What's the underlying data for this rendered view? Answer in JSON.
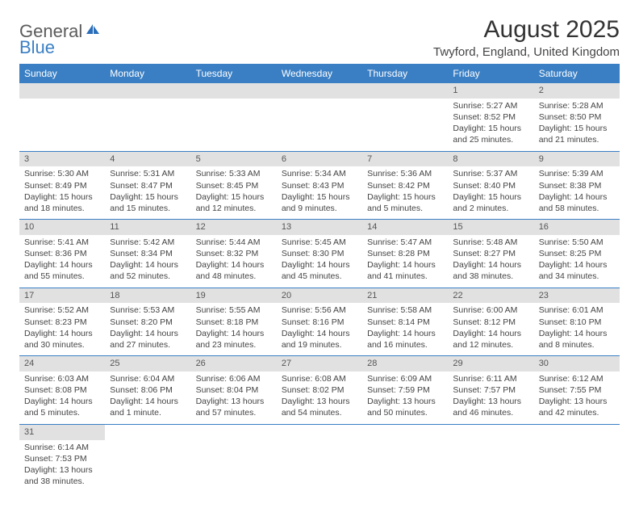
{
  "logo": {
    "part1": "General",
    "part2": "Blue"
  },
  "title": "August 2025",
  "subtitle": "Twyford, England, United Kingdom",
  "colors": {
    "header_bg": "#3a7fc4",
    "header_text": "#ffffff",
    "daynum_bg": "#e1e1e1",
    "border": "#3a7fc4",
    "text": "#444444"
  },
  "weekdays": [
    "Sunday",
    "Monday",
    "Tuesday",
    "Wednesday",
    "Thursday",
    "Friday",
    "Saturday"
  ],
  "weeks": [
    {
      "nums": [
        "",
        "",
        "",
        "",
        "",
        "1",
        "2"
      ],
      "details": [
        "",
        "",
        "",
        "",
        "",
        "Sunrise: 5:27 AM\nSunset: 8:52 PM\nDaylight: 15 hours and 25 minutes.",
        "Sunrise: 5:28 AM\nSunset: 8:50 PM\nDaylight: 15 hours and 21 minutes."
      ]
    },
    {
      "nums": [
        "3",
        "4",
        "5",
        "6",
        "7",
        "8",
        "9"
      ],
      "details": [
        "Sunrise: 5:30 AM\nSunset: 8:49 PM\nDaylight: 15 hours and 18 minutes.",
        "Sunrise: 5:31 AM\nSunset: 8:47 PM\nDaylight: 15 hours and 15 minutes.",
        "Sunrise: 5:33 AM\nSunset: 8:45 PM\nDaylight: 15 hours and 12 minutes.",
        "Sunrise: 5:34 AM\nSunset: 8:43 PM\nDaylight: 15 hours and 9 minutes.",
        "Sunrise: 5:36 AM\nSunset: 8:42 PM\nDaylight: 15 hours and 5 minutes.",
        "Sunrise: 5:37 AM\nSunset: 8:40 PM\nDaylight: 15 hours and 2 minutes.",
        "Sunrise: 5:39 AM\nSunset: 8:38 PM\nDaylight: 14 hours and 58 minutes."
      ]
    },
    {
      "nums": [
        "10",
        "11",
        "12",
        "13",
        "14",
        "15",
        "16"
      ],
      "details": [
        "Sunrise: 5:41 AM\nSunset: 8:36 PM\nDaylight: 14 hours and 55 minutes.",
        "Sunrise: 5:42 AM\nSunset: 8:34 PM\nDaylight: 14 hours and 52 minutes.",
        "Sunrise: 5:44 AM\nSunset: 8:32 PM\nDaylight: 14 hours and 48 minutes.",
        "Sunrise: 5:45 AM\nSunset: 8:30 PM\nDaylight: 14 hours and 45 minutes.",
        "Sunrise: 5:47 AM\nSunset: 8:28 PM\nDaylight: 14 hours and 41 minutes.",
        "Sunrise: 5:48 AM\nSunset: 8:27 PM\nDaylight: 14 hours and 38 minutes.",
        "Sunrise: 5:50 AM\nSunset: 8:25 PM\nDaylight: 14 hours and 34 minutes."
      ]
    },
    {
      "nums": [
        "17",
        "18",
        "19",
        "20",
        "21",
        "22",
        "23"
      ],
      "details": [
        "Sunrise: 5:52 AM\nSunset: 8:23 PM\nDaylight: 14 hours and 30 minutes.",
        "Sunrise: 5:53 AM\nSunset: 8:20 PM\nDaylight: 14 hours and 27 minutes.",
        "Sunrise: 5:55 AM\nSunset: 8:18 PM\nDaylight: 14 hours and 23 minutes.",
        "Sunrise: 5:56 AM\nSunset: 8:16 PM\nDaylight: 14 hours and 19 minutes.",
        "Sunrise: 5:58 AM\nSunset: 8:14 PM\nDaylight: 14 hours and 16 minutes.",
        "Sunrise: 6:00 AM\nSunset: 8:12 PM\nDaylight: 14 hours and 12 minutes.",
        "Sunrise: 6:01 AM\nSunset: 8:10 PM\nDaylight: 14 hours and 8 minutes."
      ]
    },
    {
      "nums": [
        "24",
        "25",
        "26",
        "27",
        "28",
        "29",
        "30"
      ],
      "details": [
        "Sunrise: 6:03 AM\nSunset: 8:08 PM\nDaylight: 14 hours and 5 minutes.",
        "Sunrise: 6:04 AM\nSunset: 8:06 PM\nDaylight: 14 hours and 1 minute.",
        "Sunrise: 6:06 AM\nSunset: 8:04 PM\nDaylight: 13 hours and 57 minutes.",
        "Sunrise: 6:08 AM\nSunset: 8:02 PM\nDaylight: 13 hours and 54 minutes.",
        "Sunrise: 6:09 AM\nSunset: 7:59 PM\nDaylight: 13 hours and 50 minutes.",
        "Sunrise: 6:11 AM\nSunset: 7:57 PM\nDaylight: 13 hours and 46 minutes.",
        "Sunrise: 6:12 AM\nSunset: 7:55 PM\nDaylight: 13 hours and 42 minutes."
      ]
    },
    {
      "nums": [
        "31",
        "",
        "",
        "",
        "",
        "",
        ""
      ],
      "details": [
        "Sunrise: 6:14 AM\nSunset: 7:53 PM\nDaylight: 13 hours and 38 minutes.",
        "",
        "",
        "",
        "",
        "",
        ""
      ]
    }
  ]
}
